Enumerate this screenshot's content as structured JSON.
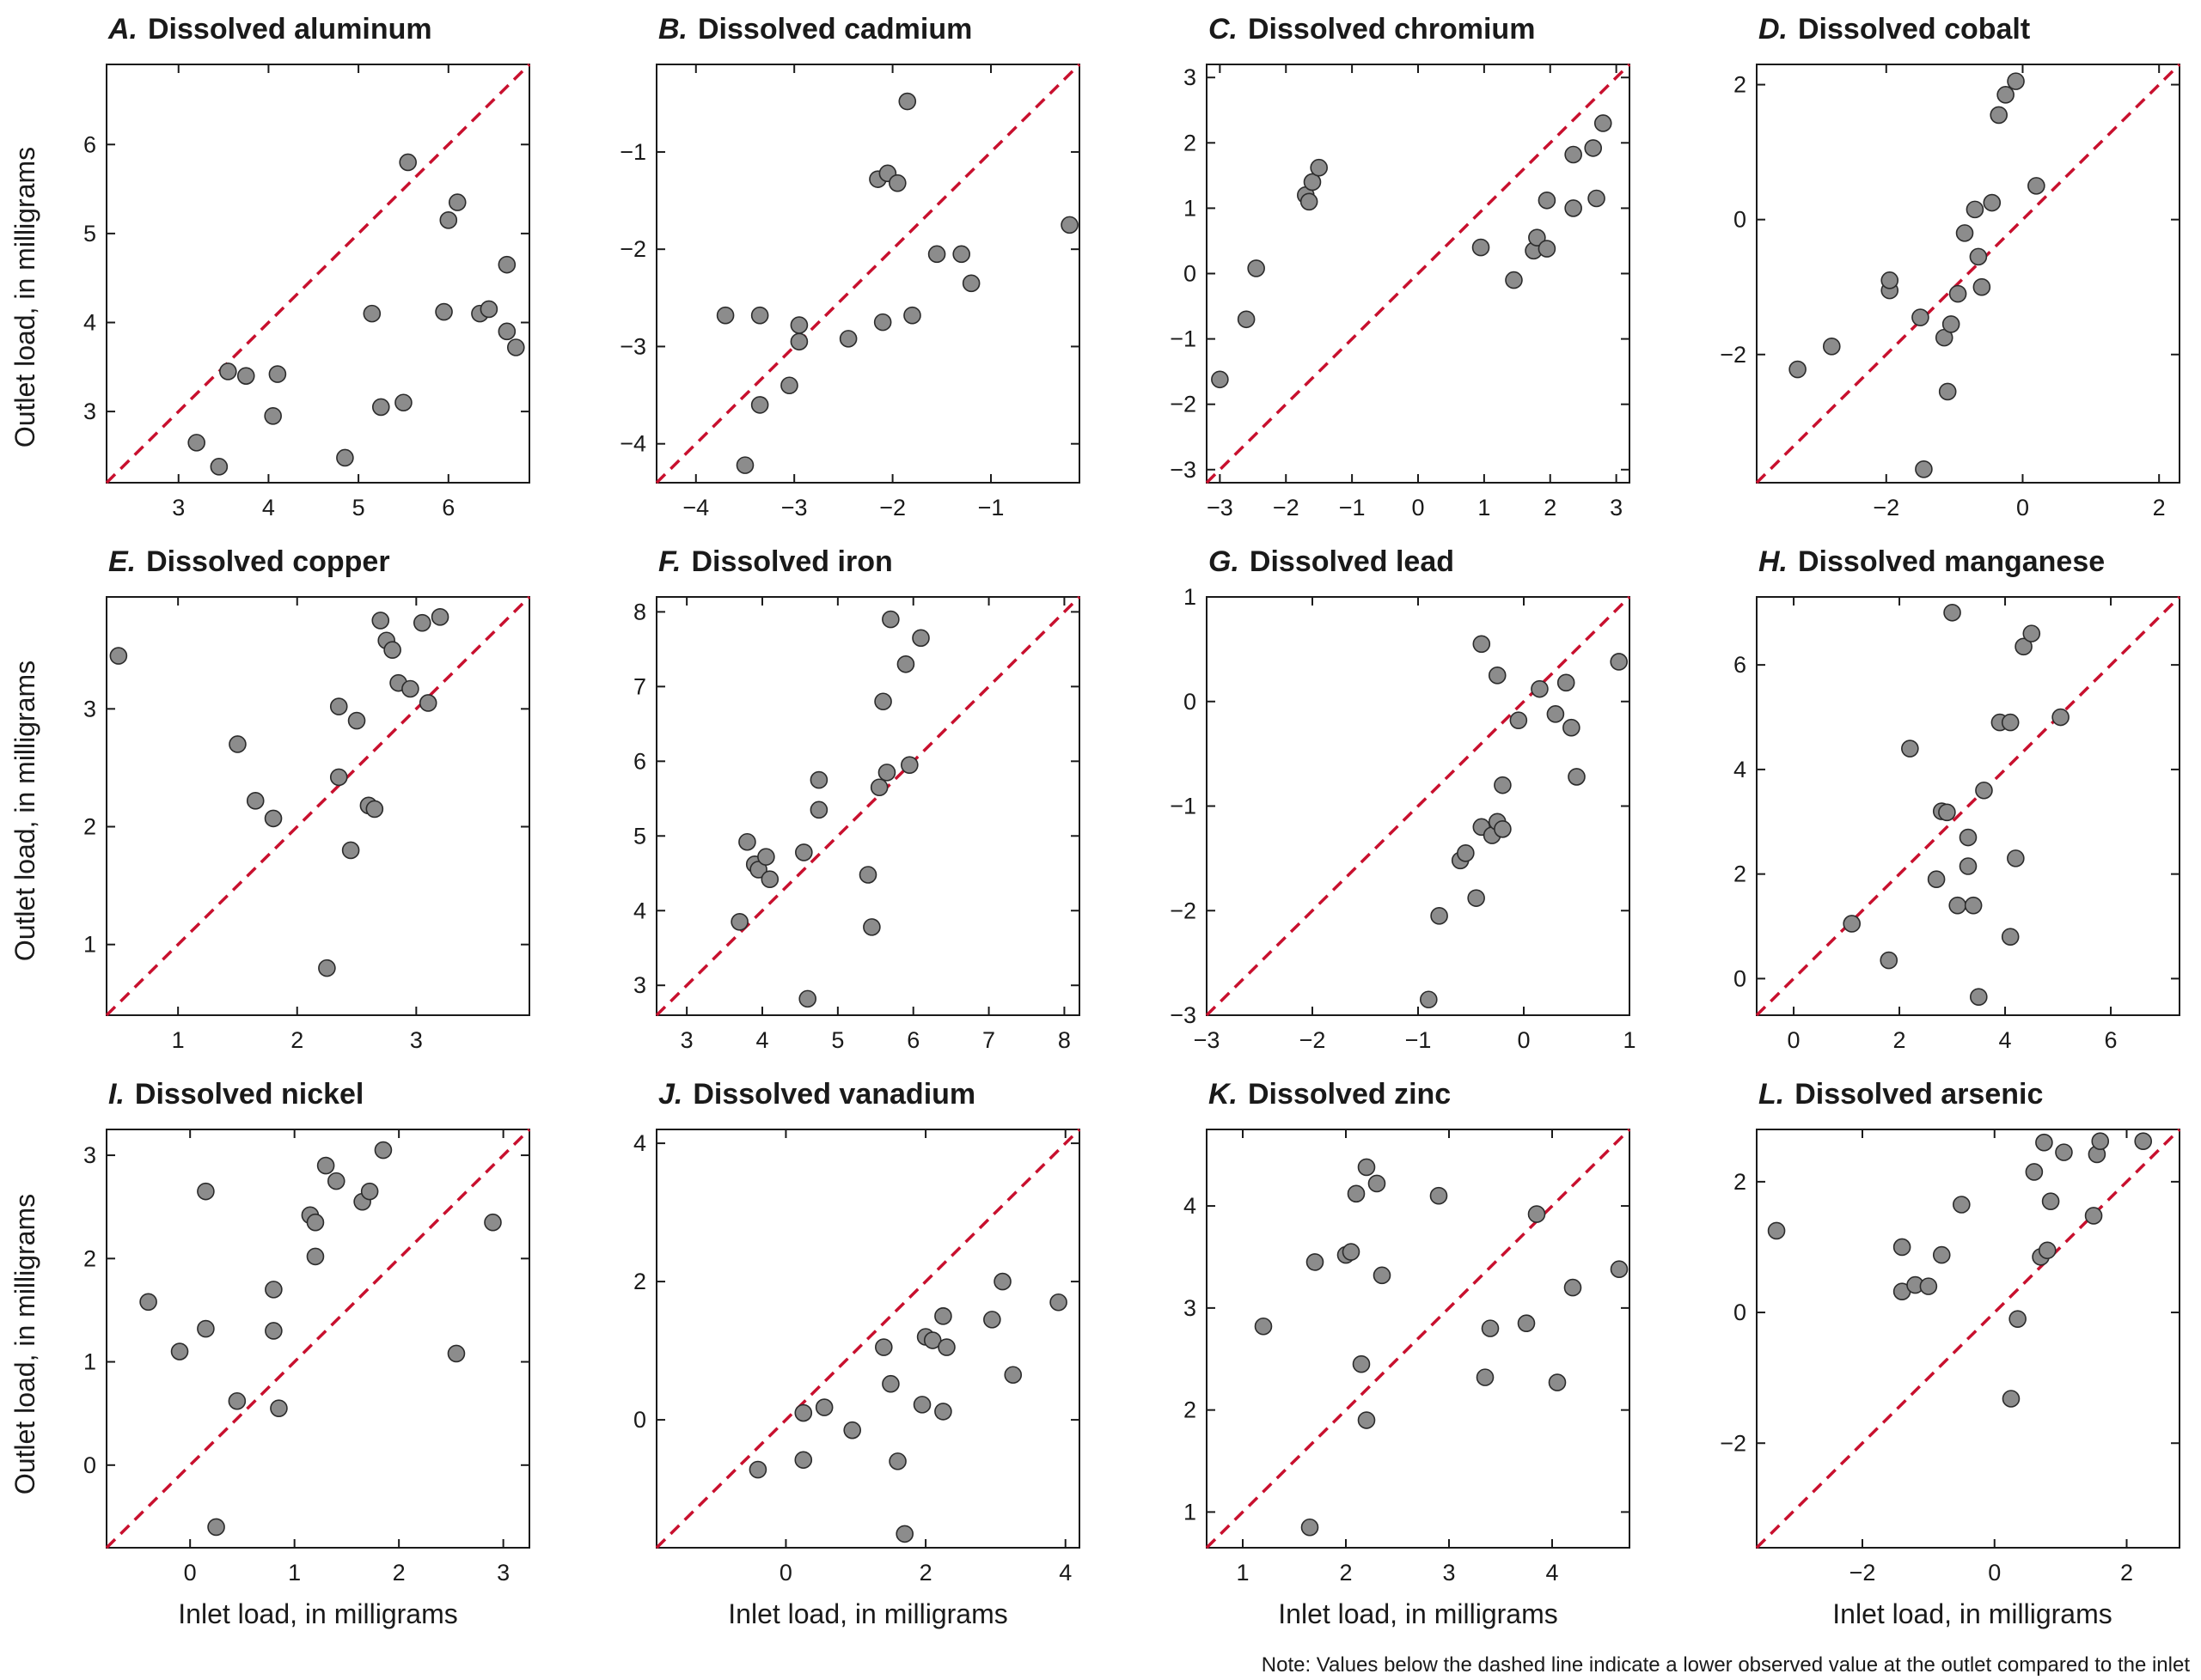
{
  "figure": {
    "x_axis_label": "Inlet load, in milligrams",
    "y_axis_label": "Outlet load, in milligrams",
    "note": "Note: Values below the dashed line indicate a lower observed value at the outlet compared to the inlet",
    "point_fill": "#8c8c8c",
    "point_stroke": "#2b2b2b",
    "line_color": "#c8102e"
  },
  "chart_data": [
    {
      "type": "scatter",
      "letter": "A.",
      "title": "Dissolved aluminum",
      "xlim": [
        2.2,
        6.9
      ],
      "ylim": [
        2.2,
        6.9
      ],
      "xticks": [
        3,
        4,
        5,
        6
      ],
      "yticks": [
        3,
        4,
        5,
        6
      ],
      "reference_line": "y = x (dashed)",
      "points": [
        [
          3.2,
          2.65
        ],
        [
          3.45,
          2.38
        ],
        [
          3.55,
          3.45
        ],
        [
          3.75,
          3.4
        ],
        [
          4.05,
          2.95
        ],
        [
          4.1,
          3.42
        ],
        [
          4.85,
          2.48
        ],
        [
          5.15,
          4.1
        ],
        [
          5.25,
          3.05
        ],
        [
          5.5,
          3.1
        ],
        [
          5.55,
          5.8
        ],
        [
          5.95,
          4.12
        ],
        [
          6.0,
          5.15
        ],
        [
          6.1,
          5.35
        ],
        [
          6.35,
          4.1
        ],
        [
          6.45,
          4.15
        ],
        [
          6.65,
          4.65
        ],
        [
          6.65,
          3.9
        ],
        [
          6.75,
          3.72
        ]
      ]
    },
    {
      "type": "scatter",
      "letter": "B.",
      "title": "Dissolved cadmium",
      "xlim": [
        -4.4,
        -0.1
      ],
      "ylim": [
        -4.4,
        -0.1
      ],
      "xticks": [
        -4,
        -3,
        -2,
        -1
      ],
      "yticks": [
        -4,
        -3,
        -2,
        -1
      ],
      "reference_line": "y = x (dashed)",
      "points": [
        [
          -3.7,
          -2.68
        ],
        [
          -3.5,
          -4.22
        ],
        [
          -3.35,
          -2.68
        ],
        [
          -3.35,
          -3.6
        ],
        [
          -3.05,
          -3.4
        ],
        [
          -2.95,
          -2.78
        ],
        [
          -2.95,
          -2.95
        ],
        [
          -2.45,
          -2.92
        ],
        [
          -2.15,
          -1.28
        ],
        [
          -2.05,
          -1.22
        ],
        [
          -2.1,
          -2.75
        ],
        [
          -1.95,
          -1.32
        ],
        [
          -1.85,
          -0.48
        ],
        [
          -1.8,
          -2.68
        ],
        [
          -1.55,
          -2.05
        ],
        [
          -1.3,
          -2.05
        ],
        [
          -1.2,
          -2.35
        ],
        [
          -0.2,
          -1.75
        ]
      ]
    },
    {
      "type": "scatter",
      "letter": "C.",
      "title": "Dissolved chromium",
      "xlim": [
        -3.2,
        3.2
      ],
      "ylim": [
        -3.2,
        3.2
      ],
      "xticks": [
        -3,
        -2,
        -1,
        0,
        1,
        2,
        3
      ],
      "yticks": [
        -3,
        -2,
        -1,
        0,
        1,
        2,
        3
      ],
      "reference_line": "y = x (dashed)",
      "points": [
        [
          -3.0,
          -1.62
        ],
        [
          -2.6,
          -0.7
        ],
        [
          -2.45,
          0.08
        ],
        [
          -1.7,
          1.2
        ],
        [
          -1.65,
          1.1
        ],
        [
          -1.6,
          1.4
        ],
        [
          -1.5,
          1.62
        ],
        [
          0.95,
          0.4
        ],
        [
          1.45,
          -0.1
        ],
        [
          1.75,
          0.35
        ],
        [
          1.8,
          0.55
        ],
        [
          1.95,
          1.12
        ],
        [
          1.95,
          0.38
        ],
        [
          2.35,
          1.82
        ],
        [
          2.35,
          1.0
        ],
        [
          2.65,
          1.92
        ],
        [
          2.7,
          1.15
        ],
        [
          2.8,
          2.3
        ]
      ]
    },
    {
      "type": "scatter",
      "letter": "D.",
      "title": "Dissolved cobalt",
      "xlim": [
        -3.9,
        2.3
      ],
      "ylim": [
        -3.9,
        2.3
      ],
      "xticks": [
        -2,
        0,
        2
      ],
      "yticks": [
        -2,
        0,
        2
      ],
      "reference_line": "y = x (dashed)",
      "points": [
        [
          -3.3,
          -2.22
        ],
        [
          -2.8,
          -1.88
        ],
        [
          -1.95,
          -1.05
        ],
        [
          -1.95,
          -0.9
        ],
        [
          -1.5,
          -1.45
        ],
        [
          -1.45,
          -3.7
        ],
        [
          -1.15,
          -1.75
        ],
        [
          -1.1,
          -2.55
        ],
        [
          -1.05,
          -1.55
        ],
        [
          -0.95,
          -1.1
        ],
        [
          -0.85,
          -0.2
        ],
        [
          -0.7,
          0.15
        ],
        [
          -0.65,
          -0.55
        ],
        [
          -0.6,
          -1.0
        ],
        [
          -0.45,
          0.25
        ],
        [
          -0.35,
          1.55
        ],
        [
          -0.25,
          1.85
        ],
        [
          -0.1,
          2.05
        ],
        [
          0.2,
          0.5
        ]
      ]
    },
    {
      "type": "scatter",
      "letter": "E.",
      "title": "Dissolved copper",
      "xlim": [
        0.4,
        3.95
      ],
      "ylim": [
        0.4,
        3.95
      ],
      "xticks": [
        1,
        2,
        3
      ],
      "yticks": [
        1,
        2,
        3
      ],
      "reference_line": "y = x (dashed)",
      "points": [
        [
          0.5,
          3.45
        ],
        [
          1.5,
          2.7
        ],
        [
          1.65,
          2.22
        ],
        [
          1.8,
          2.07
        ],
        [
          2.25,
          0.8
        ],
        [
          2.35,
          3.02
        ],
        [
          2.35,
          2.42
        ],
        [
          2.45,
          1.8
        ],
        [
          2.5,
          2.9
        ],
        [
          2.6,
          2.18
        ],
        [
          2.65,
          2.15
        ],
        [
          2.7,
          3.75
        ],
        [
          2.75,
          3.58
        ],
        [
          2.8,
          3.5
        ],
        [
          2.85,
          3.22
        ],
        [
          2.95,
          3.17
        ],
        [
          3.05,
          3.73
        ],
        [
          3.1,
          3.05
        ],
        [
          3.2,
          3.78
        ]
      ]
    },
    {
      "type": "scatter",
      "letter": "F.",
      "title": "Dissolved iron",
      "xlim": [
        2.6,
        8.2
      ],
      "ylim": [
        2.6,
        8.2
      ],
      "xticks": [
        3,
        4,
        5,
        6,
        7,
        8
      ],
      "yticks": [
        3,
        4,
        5,
        6,
        7,
        8
      ],
      "reference_line": "y = x (dashed)",
      "points": [
        [
          3.7,
          3.85
        ],
        [
          3.8,
          4.92
        ],
        [
          3.9,
          4.62
        ],
        [
          3.95,
          4.55
        ],
        [
          4.05,
          4.72
        ],
        [
          4.1,
          4.42
        ],
        [
          4.55,
          4.78
        ],
        [
          4.6,
          2.82
        ],
        [
          4.75,
          5.75
        ],
        [
          4.75,
          5.35
        ],
        [
          5.4,
          4.48
        ],
        [
          5.45,
          3.78
        ],
        [
          5.55,
          5.65
        ],
        [
          5.6,
          6.8
        ],
        [
          5.65,
          5.85
        ],
        [
          5.7,
          7.9
        ],
        [
          5.9,
          7.3
        ],
        [
          5.95,
          5.95
        ],
        [
          6.1,
          7.65
        ]
      ]
    },
    {
      "type": "scatter",
      "letter": "G.",
      "title": "Dissolved lead",
      "xlim": [
        -3.0,
        1.0
      ],
      "ylim": [
        -3.0,
        1.0
      ],
      "xticks": [
        -3,
        -2,
        -1,
        0,
        1
      ],
      "yticks": [
        -3,
        -2,
        -1,
        0,
        1
      ],
      "reference_line": "y = x (dashed)",
      "points": [
        [
          -0.9,
          -2.85
        ],
        [
          -0.8,
          -2.05
        ],
        [
          -0.6,
          -1.52
        ],
        [
          -0.55,
          -1.45
        ],
        [
          -0.45,
          -1.88
        ],
        [
          -0.4,
          0.55
        ],
        [
          -0.4,
          -1.2
        ],
        [
          -0.3,
          -1.28
        ],
        [
          -0.25,
          -1.15
        ],
        [
          -0.25,
          0.25
        ],
        [
          -0.2,
          -1.22
        ],
        [
          -0.2,
          -0.8
        ],
        [
          -0.05,
          -0.18
        ],
        [
          0.15,
          0.12
        ],
        [
          0.3,
          -0.12
        ],
        [
          0.4,
          0.18
        ],
        [
          0.45,
          -0.25
        ],
        [
          0.5,
          -0.72
        ],
        [
          0.9,
          0.38
        ]
      ]
    },
    {
      "type": "scatter",
      "letter": "H.",
      "title": "Dissolved manganese",
      "xlim": [
        -0.7,
        7.3
      ],
      "ylim": [
        -0.7,
        7.3
      ],
      "xticks": [
        0,
        2,
        4,
        6
      ],
      "yticks": [
        0,
        2,
        4,
        6
      ],
      "reference_line": "y = x (dashed)",
      "points": [
        [
          1.1,
          1.05
        ],
        [
          1.8,
          0.35
        ],
        [
          2.2,
          4.4
        ],
        [
          2.7,
          1.9
        ],
        [
          2.8,
          3.2
        ],
        [
          2.9,
          3.18
        ],
        [
          3.0,
          7.0
        ],
        [
          3.1,
          1.4
        ],
        [
          3.3,
          2.7
        ],
        [
          3.3,
          2.15
        ],
        [
          3.4,
          1.4
        ],
        [
          3.5,
          -0.35
        ],
        [
          3.6,
          3.6
        ],
        [
          3.9,
          4.9
        ],
        [
          4.1,
          4.9
        ],
        [
          4.1,
          0.8
        ],
        [
          4.2,
          2.3
        ],
        [
          4.35,
          6.35
        ],
        [
          4.5,
          6.6
        ],
        [
          5.05,
          5.0
        ]
      ]
    },
    {
      "type": "scatter",
      "letter": "I.",
      "title": "Dissolved nickel",
      "xlim": [
        -0.8,
        3.25
      ],
      "ylim": [
        -0.8,
        3.25
      ],
      "xticks": [
        0,
        1,
        2,
        3
      ],
      "yticks": [
        0,
        1,
        2,
        3
      ],
      "reference_line": "y = x (dashed)",
      "points": [
        [
          -0.4,
          1.58
        ],
        [
          -0.1,
          1.1
        ],
        [
          0.15,
          2.65
        ],
        [
          0.15,
          1.32
        ],
        [
          0.25,
          -0.6
        ],
        [
          0.45,
          0.62
        ],
        [
          0.8,
          1.3
        ],
        [
          0.8,
          1.7
        ],
        [
          0.85,
          0.55
        ],
        [
          1.15,
          2.42
        ],
        [
          1.2,
          2.35
        ],
        [
          1.2,
          2.02
        ],
        [
          1.3,
          2.9
        ],
        [
          1.4,
          2.75
        ],
        [
          1.65,
          2.55
        ],
        [
          1.72,
          2.65
        ],
        [
          1.85,
          3.05
        ],
        [
          2.55,
          1.08
        ],
        [
          2.9,
          2.35
        ]
      ]
    },
    {
      "type": "scatter",
      "letter": "J.",
      "title": "Dissolved vanadium",
      "xlim": [
        -1.85,
        4.2
      ],
      "ylim": [
        -1.85,
        4.2
      ],
      "xticks": [
        0,
        2,
        4
      ],
      "yticks": [
        0,
        2,
        4
      ],
      "reference_line": "y = x (dashed)",
      "points": [
        [
          -0.4,
          -0.72
        ],
        [
          0.25,
          0.1
        ],
        [
          0.25,
          -0.58
        ],
        [
          0.55,
          0.18
        ],
        [
          0.95,
          -0.15
        ],
        [
          1.4,
          1.05
        ],
        [
          1.5,
          0.52
        ],
        [
          1.6,
          -0.6
        ],
        [
          1.7,
          -1.65
        ],
        [
          1.95,
          0.22
        ],
        [
          2.0,
          1.2
        ],
        [
          2.1,
          1.15
        ],
        [
          2.25,
          0.12
        ],
        [
          2.25,
          1.5
        ],
        [
          2.3,
          1.05
        ],
        [
          2.95,
          1.45
        ],
        [
          3.1,
          2.0
        ],
        [
          3.25,
          0.65
        ],
        [
          3.9,
          1.7
        ]
      ]
    },
    {
      "type": "scatter",
      "letter": "K.",
      "title": "Dissolved zinc",
      "xlim": [
        0.65,
        4.75
      ],
      "ylim": [
        0.65,
        4.75
      ],
      "xticks": [
        1,
        2,
        3,
        4
      ],
      "yticks": [
        1,
        2,
        3,
        4
      ],
      "reference_line": "y = x (dashed)",
      "points": [
        [
          1.2,
          2.82
        ],
        [
          1.65,
          0.85
        ],
        [
          1.7,
          3.45
        ],
        [
          2.0,
          3.52
        ],
        [
          2.05,
          3.55
        ],
        [
          2.1,
          4.12
        ],
        [
          2.15,
          2.45
        ],
        [
          2.2,
          1.9
        ],
        [
          2.2,
          4.38
        ],
        [
          2.3,
          4.22
        ],
        [
          2.35,
          3.32
        ],
        [
          2.9,
          4.1
        ],
        [
          3.35,
          2.32
        ],
        [
          3.4,
          2.8
        ],
        [
          3.75,
          2.85
        ],
        [
          3.85,
          3.92
        ],
        [
          4.05,
          2.27
        ],
        [
          4.2,
          3.2
        ],
        [
          4.65,
          3.38
        ]
      ]
    },
    {
      "type": "scatter",
      "letter": "L.",
      "title": "Dissolved arsenic",
      "xlim": [
        -3.6,
        2.8
      ],
      "ylim": [
        -3.6,
        2.8
      ],
      "xticks": [
        -2,
        0,
        2
      ],
      "yticks": [
        -2,
        0,
        2
      ],
      "reference_line": "y = x (dashed)",
      "points": [
        [
          -3.3,
          1.25
        ],
        [
          -1.4,
          0.32
        ],
        [
          -1.4,
          1.0
        ],
        [
          -1.2,
          0.42
        ],
        [
          -1.0,
          0.4
        ],
        [
          -0.8,
          0.88
        ],
        [
          -0.5,
          1.65
        ],
        [
          0.25,
          -1.32
        ],
        [
          0.35,
          -0.1
        ],
        [
          0.6,
          2.15
        ],
        [
          0.7,
          0.85
        ],
        [
          0.75,
          2.6
        ],
        [
          0.8,
          0.95
        ],
        [
          0.85,
          1.7
        ],
        [
          1.05,
          2.45
        ],
        [
          1.5,
          1.48
        ],
        [
          1.55,
          2.42
        ],
        [
          1.6,
          2.62
        ],
        [
          2.25,
          2.62
        ]
      ]
    }
  ]
}
